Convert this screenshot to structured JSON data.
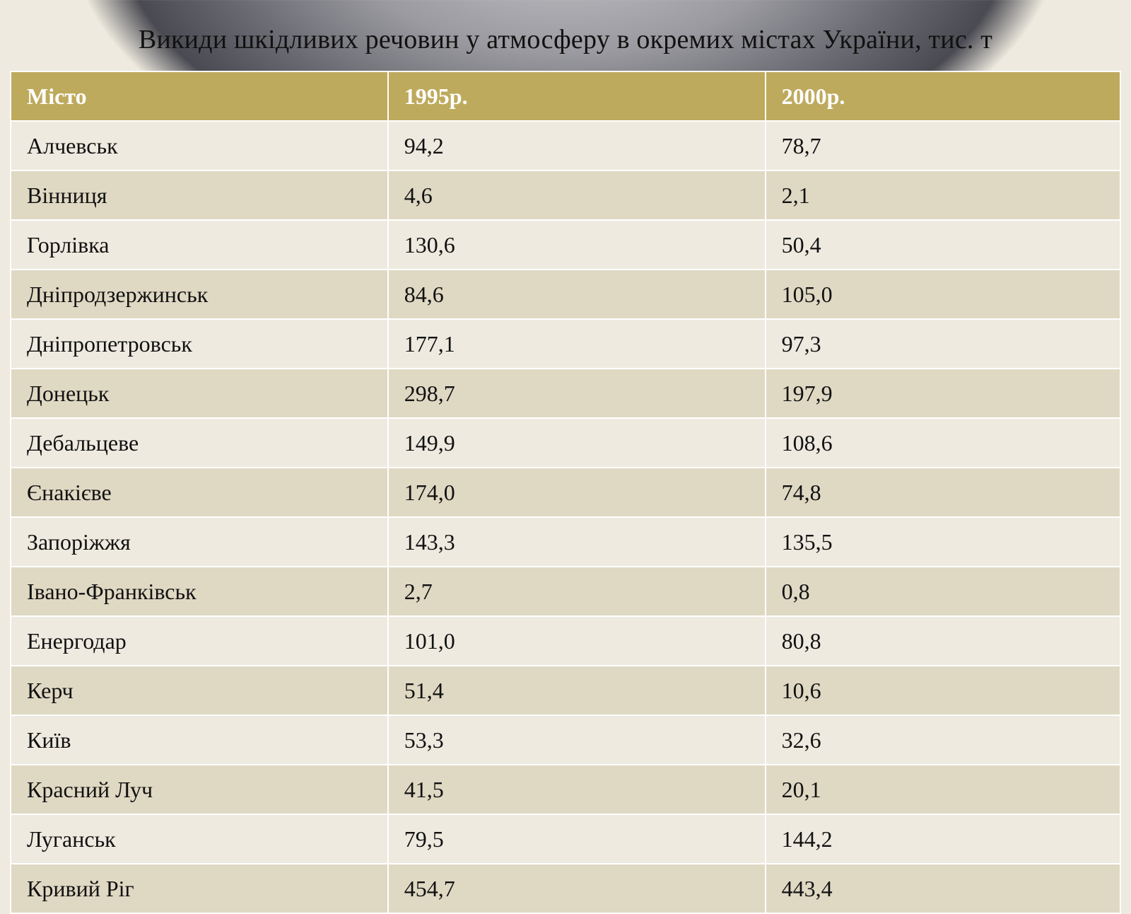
{
  "title": "Викиди шкідливих речовин у атмосферу в окремих містах України, тис. т",
  "table": {
    "type": "table",
    "header_bg": "#beaa5d",
    "header_text_color": "#ffffff",
    "row_odd_bg": "#eeeadf",
    "row_even_bg": "#dfd8c3",
    "border_color": "#ffffff",
    "font_family": "Times New Roman",
    "header_fontsize": 32,
    "cell_fontsize": 32,
    "col_widths_pct": [
      34,
      34,
      32
    ],
    "columns": [
      "Місто",
      "1995р.",
      "2000р."
    ],
    "rows": [
      [
        "Алчевськ",
        "94,2",
        "78,7"
      ],
      [
        "Вінниця",
        "4,6",
        "2,1"
      ],
      [
        "Горлівка",
        "130,6",
        "50,4"
      ],
      [
        "Дніпродзержинськ",
        "84,6",
        "105,0"
      ],
      [
        "Дніпропетровськ",
        "177,1",
        "97,3"
      ],
      [
        "Донецьк",
        "298,7",
        "197,9"
      ],
      [
        "Дебальцеве",
        "149,9",
        "108,6"
      ],
      [
        "Єнакієве",
        "174,0",
        "74,8"
      ],
      [
        "Запоріжжя",
        "143,3",
        "135,5"
      ],
      [
        "Івано-Франківськ",
        "2,7",
        "0,8"
      ],
      [
        "Енергодар",
        "101,0",
        "80,8"
      ],
      [
        "Керч",
        "51,4",
        "10,6"
      ],
      [
        "Київ",
        "53,3",
        "32,6"
      ],
      [
        "Красний Луч",
        "41,5",
        "20,1"
      ],
      [
        "Луганськ",
        "79,5",
        "144,2"
      ],
      [
        "Кривий Ріг",
        "454,7",
        "443,4"
      ]
    ]
  },
  "background": {
    "gradient_center_color": "#c8c8cc",
    "gradient_mid_color": "#6a6a72",
    "gradient_outer_color": "#eeeadf"
  }
}
